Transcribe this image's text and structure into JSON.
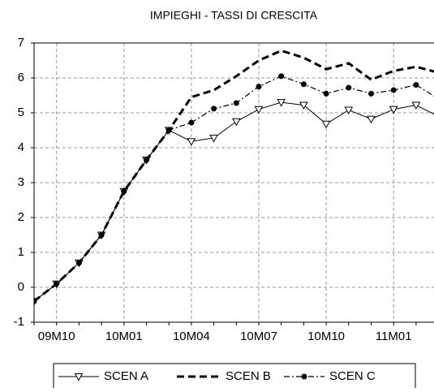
{
  "chart_data": {
    "type": "line",
    "title": "IMPIEGHI - TASSI DI CRESCITA",
    "categories": [
      null,
      "09M10",
      null,
      null,
      "10M01",
      null,
      null,
      "10M04",
      null,
      null,
      "10M07",
      null,
      null,
      "10M10",
      null,
      null,
      "11M01",
      null,
      null
    ],
    "series": [
      {
        "name": "SCEN A",
        "color": "#000000",
        "line_style": "solid",
        "marker": "triangle-down",
        "values": [
          -0.4,
          0.1,
          0.7,
          1.5,
          2.75,
          3.65,
          4.5,
          4.18,
          4.28,
          4.75,
          5.1,
          5.3,
          5.22,
          4.68,
          5.08,
          4.82,
          5.1,
          5.22,
          4.9
        ]
      },
      {
        "name": "SCEN B",
        "color": "#000000",
        "line_style": "dashed",
        "marker": "none",
        "values": [
          -0.4,
          0.1,
          0.7,
          1.5,
          2.75,
          3.65,
          4.5,
          5.45,
          5.65,
          6.05,
          6.5,
          6.78,
          6.58,
          6.25,
          6.42,
          5.95,
          6.2,
          6.32,
          6.15
        ]
      },
      {
        "name": "SCEN C",
        "color": "#000000",
        "line_style": "dash-dot",
        "marker": "circle",
        "values": [
          -0.4,
          0.1,
          0.7,
          1.5,
          2.75,
          3.65,
          4.5,
          4.72,
          5.12,
          5.28,
          5.75,
          6.05,
          5.82,
          5.55,
          5.72,
          5.55,
          5.65,
          5.8,
          5.4
        ]
      }
    ],
    "ylim": [
      -1,
      7
    ],
    "yticks": [
      -1,
      0,
      1,
      2,
      3,
      4,
      5,
      6,
      7
    ],
    "grid": true,
    "legend": "bottom"
  }
}
